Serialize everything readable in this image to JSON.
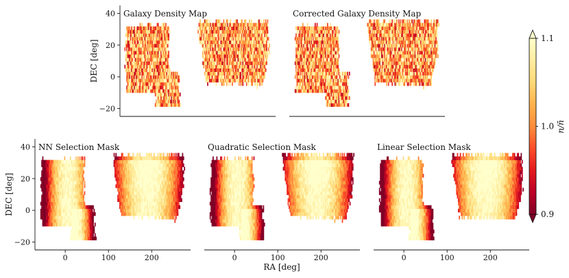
{
  "figure": {
    "colorbar": {
      "label": "n/n̄",
      "vmin": 0.9,
      "vmax": 1.1,
      "ticks": [
        0.9,
        1.0,
        1.1
      ],
      "tick_labels": [
        "0.9",
        "1.0",
        "1.1"
      ],
      "colormap": "YlOrRd",
      "extend": "both"
    },
    "shared_xlabel": "RA [deg]"
  },
  "chart_data": [
    {
      "type": "heatmap",
      "title": "Galaxy Density Map",
      "xlabel": "",
      "ylabel": "DEC [deg]",
      "xlim": [
        -70,
        290
      ],
      "ylim": [
        -25,
        45
      ],
      "xticks": [],
      "xtick_labels": [],
      "yticks": [
        -20,
        0,
        20,
        40
      ],
      "ytick_labels": [
        "−20",
        "0",
        "20",
        "40"
      ],
      "pattern": "noise",
      "value_range": [
        0.9,
        1.1
      ]
    },
    {
      "type": "heatmap",
      "title": "Corrected Galaxy Density Map",
      "xlabel": "",
      "ylabel": "",
      "xlim": [
        -70,
        290
      ],
      "ylim": [
        -25,
        45
      ],
      "xticks": [],
      "xtick_labels": [],
      "yticks": [],
      "ytick_labels": [],
      "pattern": "noise",
      "value_range": [
        0.9,
        1.1
      ]
    },
    {
      "type": "heatmap",
      "title": "NN Selection Mask",
      "xlabel": "",
      "ylabel": "DEC [deg]",
      "xlim": [
        -70,
        290
      ],
      "ylim": [
        -25,
        45
      ],
      "xticks": [
        0,
        100,
        200
      ],
      "xtick_labels": [
        "0",
        "100",
        "200"
      ],
      "yticks": [
        -20,
        0,
        20,
        40
      ],
      "ytick_labels": [
        "−20",
        "0",
        "20",
        "40"
      ],
      "pattern": "mask",
      "value_range": [
        0.9,
        1.1
      ]
    },
    {
      "type": "heatmap",
      "title": "Quadratic Selection Mask",
      "xlabel": "RA [deg]",
      "ylabel": "",
      "xlim": [
        -70,
        290
      ],
      "ylim": [
        -25,
        45
      ],
      "xticks": [
        0,
        100,
        200
      ],
      "xtick_labels": [
        "0",
        "100",
        "200"
      ],
      "yticks": [],
      "ytick_labels": [],
      "pattern": "mask",
      "value_range": [
        0.9,
        1.1
      ]
    },
    {
      "type": "heatmap",
      "title": "Linear Selection Mask",
      "xlabel": "",
      "ylabel": "",
      "xlim": [
        -70,
        290
      ],
      "ylim": [
        -25,
        45
      ],
      "xticks": [
        0,
        100,
        200
      ],
      "xtick_labels": [
        "0",
        "100",
        "200"
      ],
      "yticks": [],
      "ytick_labels": [],
      "pattern": "mask",
      "value_range": [
        0.9,
        1.1
      ]
    }
  ]
}
